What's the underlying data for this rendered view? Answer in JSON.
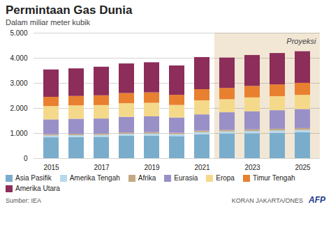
{
  "chart_data": {
    "type": "bar",
    "stacked": true,
    "title": "Permintaan Gas Dunia",
    "subtitle": "Dalam miliar meter kubik",
    "source": "Sumber: IEA",
    "credit": "KORAN JAKARTA/ONES",
    "annotations": [
      {
        "text": "Proyeksi",
        "from_index": 7
      },
      {
        "text": "AFP"
      }
    ],
    "categories": [
      "2015",
      null,
      "2017",
      null,
      "2019",
      null,
      "2021",
      null,
      "2023",
      null,
      "2025"
    ],
    "series": [
      {
        "name": "Asia Pasifik",
        "color": "#7aadcc",
        "values": [
          830,
          840,
          850,
          890,
          900,
          880,
          950,
          980,
          990,
          1010,
          1030
        ]
      },
      {
        "name": "Amerika Tengah",
        "color": "#b8d9ec",
        "values": [
          75,
          77,
          77,
          80,
          80,
          75,
          85,
          88,
          92,
          94,
          97
        ]
      },
      {
        "name": "Afrika",
        "color": "#c4a882",
        "values": [
          50,
          52,
          53,
          55,
          57,
          55,
          60,
          62,
          65,
          67,
          70
        ]
      },
      {
        "name": "Eurasia",
        "color": "#9990c8",
        "values": [
          590,
          600,
          600,
          620,
          630,
          610,
          650,
          700,
          720,
          740,
          760
        ]
      },
      {
        "name": "Eropa",
        "color": "#f5d98b",
        "values": [
          530,
          535,
          535,
          545,
          540,
          500,
          560,
          520,
          555,
          560,
          565
        ]
      },
      {
        "name": "Timur Tengah",
        "color": "#e88030",
        "values": [
          370,
          375,
          390,
          405,
          415,
          405,
          445,
          450,
          460,
          470,
          480
        ]
      },
      {
        "name": "Amerika Utara",
        "color": "#8c2d5a",
        "values": [
          1090,
          1100,
          1140,
          1180,
          1200,
          1170,
          1280,
          1210,
          1230,
          1250,
          1260
        ]
      }
    ],
    "ylim": [
      0,
      5000
    ],
    "yticks": [
      0,
      {
        "value": 1000,
        "label": "1.000"
      },
      {
        "value": 2000,
        "label": "2.000"
      },
      {
        "value": 3000,
        "label": "3.000"
      },
      {
        "value": 4000,
        "label": "4.000"
      },
      {
        "value": 5000,
        "label": "5.000"
      }
    ],
    "grid": true,
    "legend": "bottom"
  }
}
